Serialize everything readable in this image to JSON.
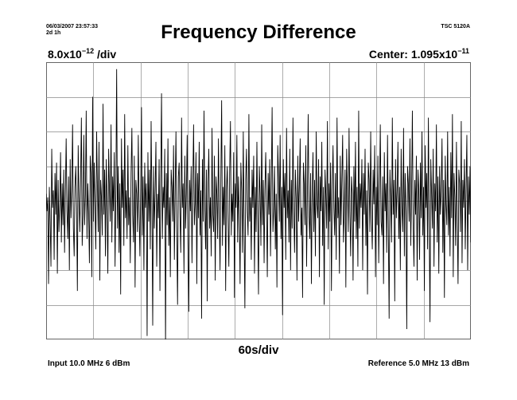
{
  "header": {
    "timestamp": "06/03/2007 23:57:33",
    "duration": "2d 1h",
    "instrument": "TSC 5120A"
  },
  "chart_data": {
    "type": "line",
    "title": "Frequency Difference",
    "y_scale": {
      "prefix": "8.0x10",
      "exponent": "−12",
      "suffix": " /div",
      "value_per_div": 8e-12
    },
    "center": {
      "prefix": "Center: 1.095x10",
      "exponent": "−11",
      "value": 1.095e-11
    },
    "x_scale": {
      "label": "60s/div",
      "seconds_per_div": 60
    },
    "divisions": {
      "x": 9,
      "y": 8
    },
    "ylim_div": [
      -4,
      4
    ],
    "grid": true,
    "series": [
      {
        "values_div": [
          0.2,
          -0.3,
          0.1,
          -2.4,
          0.4,
          -0.6,
          -1.9,
          1.5,
          -0.2,
          0.3,
          -1.7,
          0.8,
          -0.4,
          1.1,
          -2.1,
          0.6,
          -0.9,
          -0.1,
          1.4,
          -1.2,
          0.5,
          -0.7,
          0.9,
          -1.5,
          0.2,
          1.8,
          -0.3,
          -1.1,
          0.7,
          -2.0,
          1.2,
          -0.5,
          0.3,
          2.2,
          -0.8,
          -1.6,
          0.4,
          1.0,
          -0.2,
          -2.6,
          1.6,
          0.1,
          -0.9,
          0.6,
          2.4,
          -1.3,
          -0.4,
          1.9,
          -0.7,
          0.2,
          2.6,
          -1.1,
          0.5,
          -0.3,
          -1.8,
          1.3,
          0.8,
          -2.2,
          3.0,
          -0.6,
          1.1,
          -0.2,
          -1.4,
          2.0,
          0.4,
          -0.9,
          1.7,
          -2.3,
          0.6,
          0.1,
          -1.0,
          2.8,
          -0.4,
          0.9,
          -1.6,
          1.2,
          -0.1,
          -2.1,
          1.5,
          0.3,
          -0.6,
          2.2,
          -1.2,
          0.7,
          -0.3,
          1.4,
          -1.9,
          0.2,
          3.8,
          -0.8,
          1.0,
          -1.5,
          0.5,
          -2.7,
          1.8,
          -0.2,
          0.9,
          -1.3,
          2.5,
          -0.5,
          0.3,
          -1.1,
          1.6,
          -0.7,
          0.1,
          -1.8,
          0.8,
          2.1,
          -0.4,
          -1.2,
          1.3,
          -2.5,
          0.6,
          0.2,
          -0.9,
          1.9,
          -0.3,
          -1.6,
          0.4,
          2.7,
          -1.0,
          0.7,
          -2.0,
          1.1,
          -0.2,
          0.5,
          -3.9,
          1.4,
          -0.6,
          0.9,
          -1.4,
          2.3,
          -0.1,
          -3.6,
          1.0,
          -0.8,
          0.3,
          1.7,
          -1.9,
          0.2,
          -0.5,
          1.2,
          -2.6,
          0.6,
          3.1,
          -1.1,
          0.4,
          -0.2,
          1.5,
          -4.2,
          0.8,
          -0.7,
          1.8,
          -1.3,
          0.1,
          -2.2,
          0.9,
          0.4,
          -0.6,
          1.6,
          -1.7,
          0.3,
          2.0,
          -0.9,
          -3.0,
          0.7,
          1.1,
          -0.4,
          -1.5,
          2.4,
          -0.2,
          0.5,
          -2.1,
          1.3,
          -0.8,
          0.2,
          1.9,
          -1.2,
          -3.2,
          0.6,
          -0.3,
          1.0,
          -1.8,
          0.4,
          2.2,
          -0.7,
          -0.1,
          1.4,
          -2.4,
          0.8,
          -0.5,
          1.7,
          -1.0,
          0.3,
          -3.4,
          1.2,
          -0.6,
          2.6,
          -0.2,
          -1.4,
          0.9,
          -2.9,
          0.5,
          1.5,
          -0.8,
          0.1,
          -1.6,
          2.1,
          -0.4,
          -0.9,
          1.3,
          -2.3,
          0.7,
          0.2,
          -1.1,
          1.8,
          -0.3,
          -2.0,
          0.6,
          2.9,
          -1.3,
          0.4,
          -0.7,
          1.6,
          -2.6,
          0.3,
          1.0,
          -0.5,
          -1.9,
          0.8,
          2.3,
          -1.0,
          0.2,
          -0.6,
          1.4,
          -2.8,
          0.5,
          -0.2,
          1.9,
          -1.2,
          0.7,
          -0.4,
          -2.4,
          1.1,
          0.3,
          -1.5,
          2.0,
          -0.8,
          -3.1,
          0.6,
          1.5,
          -0.3,
          -1.0,
          2.5,
          -0.6,
          0.1,
          -1.7,
          0.9,
          -0.2,
          1.3,
          -2.1,
          0.4,
          -0.9,
          1.7,
          -0.5,
          -2.7,
          1.0,
          0.2,
          -1.3,
          2.2,
          -0.7,
          0.6,
          -1.8,
          0.3,
          1.4,
          -0.1,
          -2.2,
          0.8,
          -0.4,
          1.2,
          -1.6,
          0.5,
          2.7,
          -0.9,
          -0.3,
          1.0,
          -1.4,
          0.2,
          -2.5,
          1.6,
          0.7,
          -0.6,
          1.9,
          -1.1,
          0.4,
          -3.3,
          1.2,
          -0.2,
          0.8,
          -1.7,
          2.1,
          -0.5,
          0.3,
          -1.2,
          1.5,
          -2.0,
          0.6,
          -0.8,
          2.4,
          -0.3,
          -1.5,
          0.9,
          0.1,
          -2.3,
          1.3,
          -0.6,
          0.4,
          1.8,
          -1.0,
          -0.2,
          -2.8,
          1.1,
          0.5,
          -0.7,
          1.6,
          -1.9,
          0.2,
          2.5,
          -0.4,
          -1.1,
          0.8,
          -2.4,
          0.3,
          1.4,
          -0.9,
          0.6,
          -1.6,
          2.0,
          -0.1,
          -0.5,
          1.2,
          -2.2,
          0.7,
          -0.3,
          1.7,
          -1.3,
          0.4,
          -3.0,
          0.9,
          0.2,
          -0.8,
          2.3,
          -1.4,
          0.5,
          -0.6,
          1.1,
          -2.6,
          0.3,
          1.6,
          -0.2,
          -1.0,
          0.8,
          -1.7,
          2.4,
          -0.5,
          0.1,
          -2.1,
          1.3,
          -0.7,
          0.6,
          1.9,
          -1.2,
          -0.4,
          0.9,
          -2.5,
          1.5,
          0.3,
          -0.9,
          2.1,
          -0.3,
          -1.6,
          0.7,
          0.2,
          -2.3,
          1.0,
          -0.6,
          1.7,
          -1.1,
          0.4,
          -1.9,
          2.6,
          -0.8,
          0.5,
          -0.2,
          1.2,
          -2.0,
          0.8,
          -0.4,
          1.5,
          -1.3,
          0.3,
          -2.7,
          1.1,
          0.6,
          -0.9,
          2.0,
          -0.5,
          -1.4,
          0.9,
          -0.1,
          1.6,
          -2.2,
          0.4,
          -0.7,
          1.3,
          -1.8,
          0.2,
          2.2,
          -0.6,
          -1.0,
          0.7,
          -2.4,
          1.4,
          -0.3,
          0.5,
          -1.5,
          1.9,
          -0.8,
          -3.4,
          0.9,
          0.1,
          -1.2,
          2.4,
          -0.4,
          0.6,
          -2.9,
          1.2,
          -0.5,
          0.3,
          1.7,
          -1.1,
          0.4,
          -2.0,
          1.5,
          -0.2,
          -0.9,
          2.1,
          -1.6,
          0.8,
          -0.3,
          -3.7,
          1.0,
          0.5,
          -0.6,
          1.8,
          -1.3,
          0.2,
          2.6,
          -0.7,
          -1.9,
          0.6,
          -0.4,
          1.3,
          -2.3,
          0.9,
          0.3,
          -1.7,
          1.1,
          -0.5,
          2.0,
          -1.0,
          0.4,
          -2.6,
          1.6,
          -0.2,
          0.8,
          -1.4,
          2.4,
          -0.6,
          -3.5,
          1.2,
          0.2,
          -0.8,
          1.5,
          -1.9,
          0.5,
          -0.3,
          2.2,
          -1.2,
          0.7,
          -2.1,
          1.0,
          -0.4,
          0.3,
          1.8,
          -1.5,
          0.6,
          -2.8,
          1.3,
          -0.1,
          -0.7,
          2.0,
          -1.0,
          0.4,
          -1.6,
          1.4,
          -0.5,
          2.5,
          -2.2,
          0.8,
          0.1,
          -1.3,
          1.7,
          -0.6,
          -2.4,
          0.9,
          0.5,
          -0.9,
          2.3,
          -1.8,
          0.6,
          -0.2,
          1.2,
          -1.4,
          0.3,
          1.9,
          -2.0,
          0.7,
          -0.4,
          1.0,
          -1.2
        ]
      }
    ]
  },
  "footer": {
    "input": "Input 10.0 MHz 6 dBm",
    "reference": "Reference 5.0 MHz 13 dBm"
  }
}
